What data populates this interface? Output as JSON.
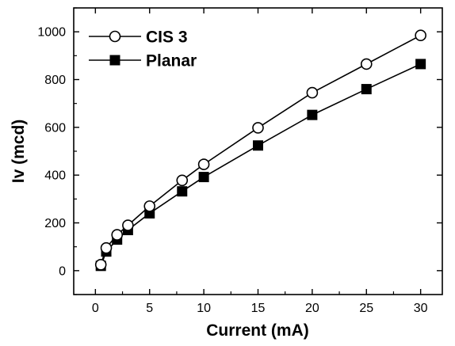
{
  "chart_data": {
    "type": "line",
    "xlabel": "Current (mA)",
    "ylabel": "Iv (mcd)",
    "xlim": [
      -2,
      32
    ],
    "ylim": [
      -100,
      1100
    ],
    "xticks": [
      0,
      5,
      10,
      15,
      20,
      25,
      30
    ],
    "yticks": [
      0,
      200,
      400,
      600,
      800,
      1000
    ],
    "grid": false,
    "legend_position": "top-left",
    "series": [
      {
        "name": "CIS 3",
        "marker": "open-circle",
        "color": "#000000",
        "x": [
          0.5,
          1,
          2,
          3,
          5,
          8,
          10,
          15,
          20,
          25,
          30
        ],
        "y": [
          25,
          95,
          150,
          190,
          270,
          378,
          445,
          598,
          745,
          865,
          985
        ]
      },
      {
        "name": "Planar",
        "marker": "filled-square",
        "color": "#000000",
        "x": [
          0.5,
          1,
          2,
          3,
          5,
          8,
          10,
          15,
          20,
          25,
          30
        ],
        "y": [
          20,
          80,
          130,
          170,
          240,
          332,
          392,
          524,
          652,
          760,
          865
        ]
      }
    ]
  }
}
